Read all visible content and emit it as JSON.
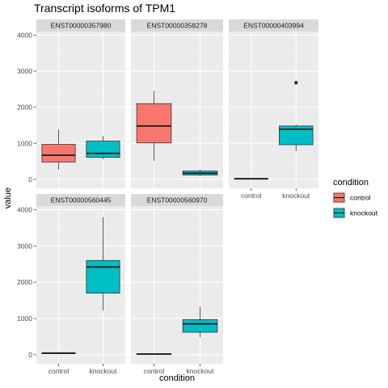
{
  "chart_data": {
    "type": "box",
    "title": "Transcript isoforms of TPM1",
    "xlabel": "condition",
    "ylabel": "value",
    "ylim": [
      -250,
      4100
    ],
    "yticks": [
      0,
      1000,
      2000,
      3000,
      4000
    ],
    "categories": [
      "control",
      "knockout"
    ],
    "colors": {
      "control": "#F8766D",
      "knockout": "#00BFC4"
    },
    "legend": {
      "title": "condition",
      "position": "right",
      "items": [
        "control",
        "knockout"
      ]
    },
    "panels": [
      {
        "name": "ENST00000357980",
        "boxes": [
          {
            "group": "control",
            "lower": 270,
            "q1": 480,
            "median": 670,
            "q3": 970,
            "upper": 1380,
            "outliers": []
          },
          {
            "group": "knockout",
            "lower": 560,
            "q1": 610,
            "median": 720,
            "q3": 1060,
            "upper": 1200,
            "outliers": []
          }
        ]
      },
      {
        "name": "ENST00000358278",
        "boxes": [
          {
            "group": "control",
            "lower": 510,
            "q1": 1010,
            "median": 1480,
            "q3": 2100,
            "upper": 2450,
            "outliers": []
          },
          {
            "group": "knockout",
            "lower": 90,
            "q1": 120,
            "median": 170,
            "q3": 230,
            "upper": 270,
            "outliers": []
          }
        ]
      },
      {
        "name": "ENST00000403994",
        "boxes": [
          {
            "group": "control",
            "lower": 0,
            "q1": 10,
            "median": 15,
            "q3": 25,
            "upper": 35,
            "outliers": []
          },
          {
            "group": "knockout",
            "lower": 790,
            "q1": 960,
            "median": 1390,
            "q3": 1480,
            "upper": 1520,
            "outliers": [
              2680
            ]
          }
        ]
      },
      {
        "name": "ENST00000560445",
        "boxes": [
          {
            "group": "control",
            "lower": 20,
            "q1": 30,
            "median": 40,
            "q3": 55,
            "upper": 70,
            "outliers": []
          },
          {
            "group": "knockout",
            "lower": 1220,
            "q1": 1700,
            "median": 2420,
            "q3": 2600,
            "upper": 3800,
            "outliers": []
          }
        ]
      },
      {
        "name": "ENST00000560970",
        "boxes": [
          {
            "group": "control",
            "lower": 5,
            "q1": 12,
            "median": 18,
            "q3": 25,
            "upper": 30,
            "outliers": []
          },
          {
            "group": "knockout",
            "lower": 480,
            "q1": 620,
            "median": 850,
            "q3": 970,
            "upper": 1320,
            "outliers": []
          }
        ]
      }
    ]
  }
}
